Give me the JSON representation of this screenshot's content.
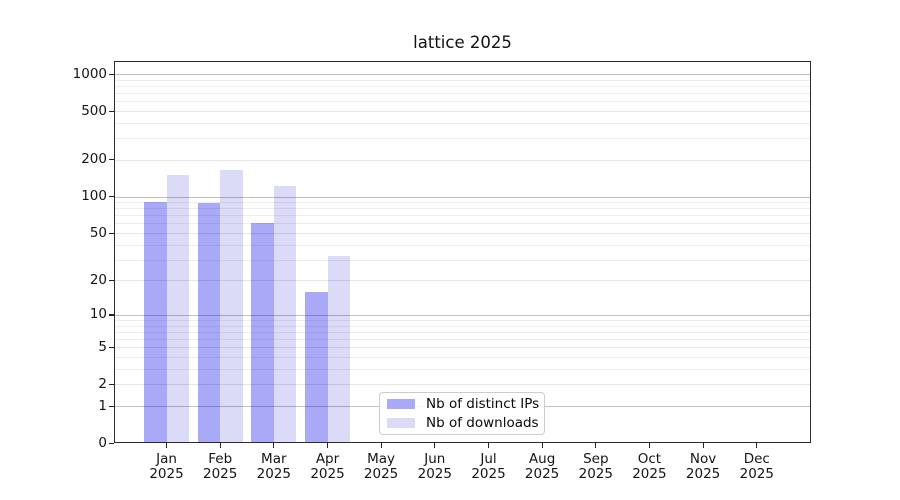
{
  "chart_data": {
    "type": "bar",
    "title": "lattice 2025",
    "categories": [
      "Jan",
      "Feb",
      "Mar",
      "Apr",
      "May",
      "Jun",
      "Jul",
      "Aug",
      "Sep",
      "Oct",
      "Nov",
      "Dec"
    ],
    "x_tick_second_line": "2025",
    "series": [
      {
        "key": "distinct-ips",
        "name": "Nb of distinct IPs",
        "color": "#a9a9f8",
        "values": [
          90,
          88,
          60,
          16,
          0,
          0,
          0,
          0,
          0,
          0,
          0,
          0
        ]
      },
      {
        "key": "downloads",
        "name": "Nb of downloads",
        "color": "#dbdbf8",
        "values": [
          150,
          164,
          122,
          32,
          0,
          0,
          0,
          0,
          0,
          0,
          0,
          0
        ]
      }
    ],
    "yscale": "log1p",
    "ylim": [
      0,
      1276
    ],
    "y_ticks": [
      0,
      1,
      2,
      5,
      10,
      20,
      50,
      100,
      200,
      500,
      1000
    ],
    "y_minor_ticks": [
      3,
      4,
      6,
      7,
      8,
      9,
      30,
      40,
      60,
      70,
      80,
      90,
      300,
      400,
      600,
      700,
      800,
      900
    ],
    "grid": true,
    "legend_position": "lower center"
  },
  "grid_colors": {
    "major": "rgba(0,0,0,0.24)",
    "labeled": "rgba(0,0,0,0.10)",
    "minor": "rgba(0,0,0,0.07)"
  }
}
